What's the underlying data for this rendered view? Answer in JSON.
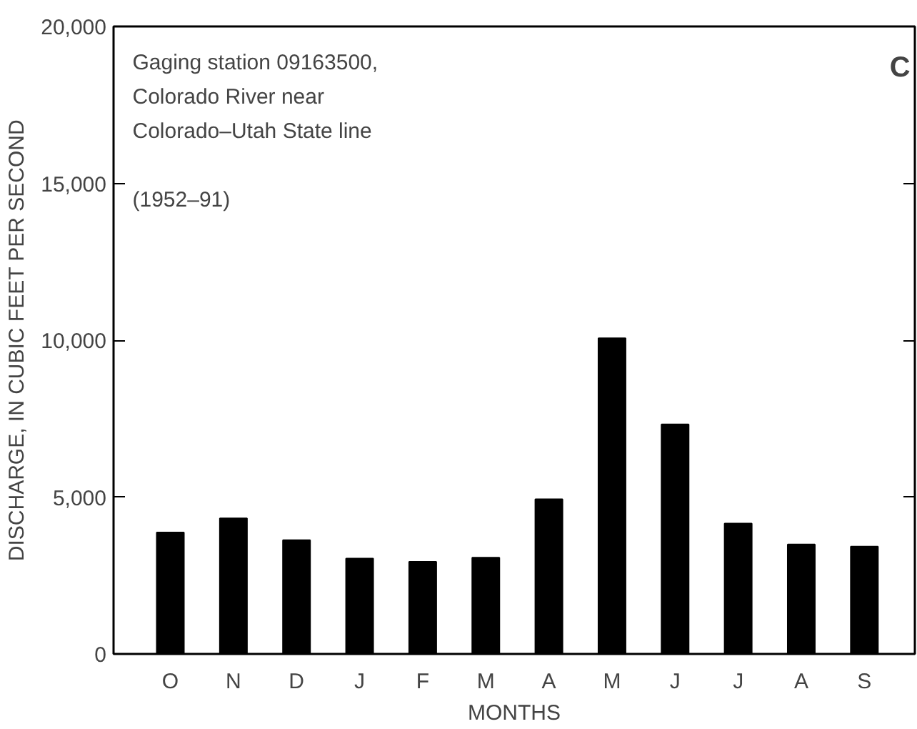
{
  "chart_data": {
    "type": "bar",
    "xlabel": "MONTHS",
    "ylabel": "DISCHARGE, IN CUBIC FEET PER SECOND",
    "categories": [
      "O",
      "N",
      "D",
      "J",
      "F",
      "M",
      "A",
      "M",
      "J",
      "J",
      "A",
      "S"
    ],
    "values": [
      3870,
      4320,
      3630,
      3040,
      2940,
      3070,
      4930,
      10060,
      7320,
      4160,
      3490,
      3420
    ],
    "color": "#000000",
    "ylim": [
      0,
      20000
    ],
    "yticks": [
      0,
      {
        "value": 5000,
        "label": "5,000"
      },
      {
        "value": 10000,
        "label": "10,000"
      },
      {
        "value": 15000,
        "label": "15,000"
      },
      {
        "value": 20000,
        "label": "20,000"
      }
    ],
    "grid": false,
    "annotations": [
      "Gaging station 09163500,\nColorado River near\nColorado–Utah State line",
      "(1952–91)",
      "C"
    ]
  }
}
